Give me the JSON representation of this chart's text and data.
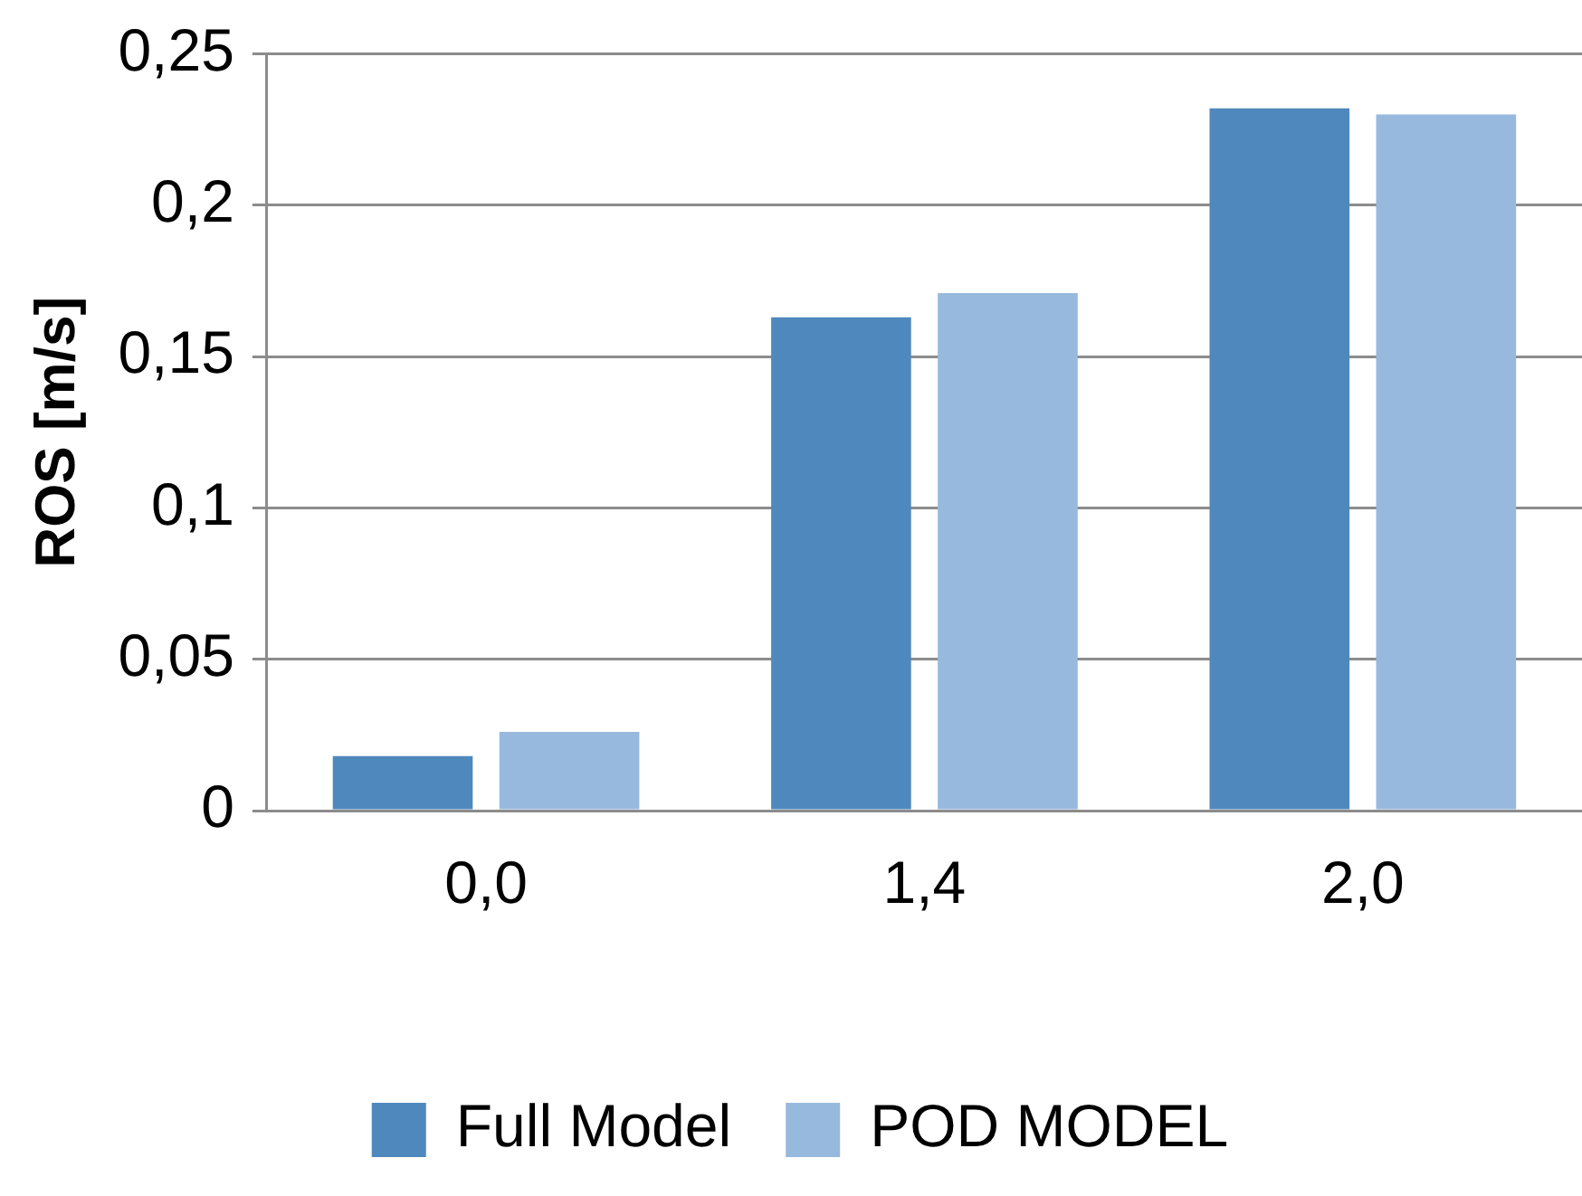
{
  "chart_data": {
    "type": "bar",
    "ylabel": "ROS [m/s]",
    "categories": [
      "0,0",
      "1,4",
      "2,0"
    ],
    "series": [
      {
        "name": "Full Model",
        "color": "#4f88bd",
        "values": [
          0.018,
          0.163,
          0.232
        ]
      },
      {
        "name": "POD MODEL",
        "color": "#98b9de",
        "values": [
          0.026,
          0.171,
          0.23
        ]
      }
    ],
    "ylim": [
      0,
      0.25
    ],
    "yticks": [
      {
        "value": 0,
        "label": "0"
      },
      {
        "value": 0.05,
        "label": "0,05"
      },
      {
        "value": 0.1,
        "label": "0,1"
      },
      {
        "value": 0.15,
        "label": "0,15"
      },
      {
        "value": 0.2,
        "label": "0,2"
      },
      {
        "value": 0.25,
        "label": "0,25"
      }
    ],
    "grid": "y",
    "legend": "bottom"
  }
}
